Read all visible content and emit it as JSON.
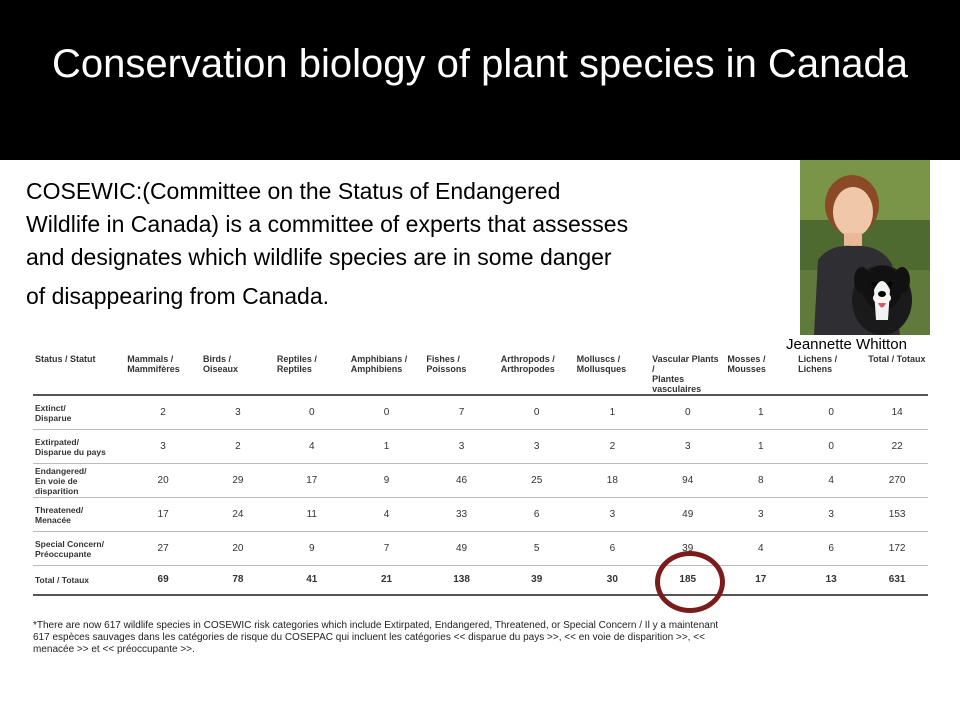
{
  "slide": {
    "title": "Conservation biology of plant species in Canada",
    "intro_lines": [
      "COSEWIC:(Committee on the Status of Endangered",
      "Wildlife in Canada) is a committee of experts that assesses",
      "and designates which wildlife species are in some danger",
      "of disappearing from Canada."
    ],
    "photo_caption": "Jeannette Whitton",
    "colors": {
      "title_bar": "#000000",
      "highlight_ring": "#7a1c1c"
    }
  },
  "table": {
    "headers": [
      [
        "Status / Statut",
        ""
      ],
      [
        "Mammals /",
        "Mammifères"
      ],
      [
        "Birds /",
        "Oiseaux"
      ],
      [
        "Reptiles /",
        "Reptiles"
      ],
      [
        "Amphibians /",
        "Amphibiens"
      ],
      [
        "Fishes /",
        "Poissons"
      ],
      [
        "Arthropods /",
        "Arthropodes"
      ],
      [
        "Molluscs /",
        "Mollusques"
      ],
      [
        "Vascular Plants /",
        "Plantes vasculaires"
      ],
      [
        "Mosses /",
        "Mousses"
      ],
      [
        "Lichens /",
        "Lichens"
      ],
      [
        "Total / Totaux",
        ""
      ]
    ],
    "rows": [
      {
        "label": [
          "Extinct/",
          "Disparue"
        ],
        "values": [
          "2",
          "3",
          "0",
          "0",
          "7",
          "0",
          "1",
          "0",
          "1",
          "0",
          "14"
        ]
      },
      {
        "label": [
          "Extirpated/",
          "Disparue du pays"
        ],
        "values": [
          "3",
          "2",
          "4",
          "1",
          "3",
          "3",
          "2",
          "3",
          "1",
          "0",
          "22"
        ]
      },
      {
        "label": [
          "Endangered/",
          "En voie de disparition"
        ],
        "values": [
          "20",
          "29",
          "17",
          "9",
          "46",
          "25",
          "18",
          "94",
          "8",
          "4",
          "270"
        ]
      },
      {
        "label": [
          "Threatened/",
          "Menacée"
        ],
        "values": [
          "17",
          "24",
          "11",
          "4",
          "33",
          "6",
          "3",
          "49",
          "3",
          "3",
          "153"
        ]
      },
      {
        "label": [
          "Special Concern/",
          "Préoccupante"
        ],
        "values": [
          "27",
          "20",
          "9",
          "7",
          "49",
          "5",
          "6",
          "39",
          "4",
          "6",
          "172"
        ]
      },
      {
        "label": [
          "Total / Totaux",
          ""
        ],
        "values": [
          "69",
          "78",
          "41",
          "21",
          "138",
          "39",
          "30",
          "185",
          "17",
          "13",
          "631"
        ]
      }
    ],
    "highlighted_value": "185"
  },
  "footnote_lines": [
    "*There are now 617 wildlife species in COSEWIC risk categories which include Extirpated, Endangered, Threatened, or Special Concern / Il y a maintenant",
    "617 espèces sauvages dans les catégories de risque du COSEPAC qui incluent les catégories << disparue du pays >>, << en voie de disparition >>, <<",
    "menacée >> et << préoccupante >>."
  ]
}
